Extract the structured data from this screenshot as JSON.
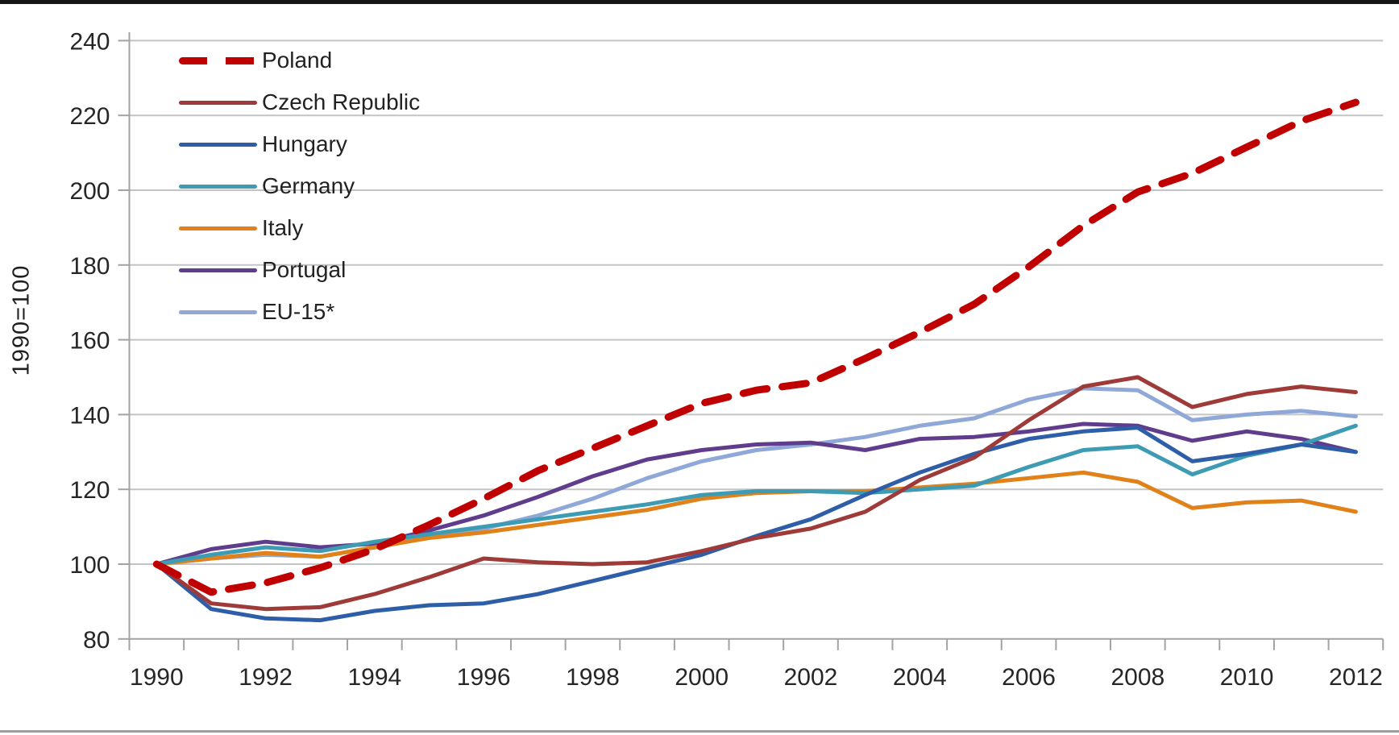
{
  "page": {
    "background_color": "#ffffff",
    "top_edge_color": "#161616",
    "bottom_edge_color": "#9d9d9d"
  },
  "axes": {
    "y_title": "1990=100",
    "grid_color": "#c4c4c4",
    "axis_color": "#a3a3a3",
    "tick_label_color": "#262626"
  },
  "chart_data": {
    "type": "line",
    "title": "",
    "xlabel": "",
    "ylabel": "1990=100",
    "ylim": [
      80,
      240
    ],
    "ytick_step": 20,
    "grid": "horizontal",
    "legend_position": "top-left",
    "x": [
      1990,
      1991,
      1992,
      1993,
      1994,
      1995,
      1996,
      1997,
      1998,
      1999,
      2000,
      2001,
      2002,
      2003,
      2004,
      2005,
      2006,
      2007,
      2008,
      2009,
      2010,
      2011,
      2012
    ],
    "x_tick_labels": [
      "1990",
      "1992",
      "1994",
      "1996",
      "1998",
      "2000",
      "2002",
      "2004",
      "2006",
      "2008",
      "2010",
      "2012"
    ],
    "series": [
      {
        "name": "Poland",
        "color": "#c00000",
        "style": "dashed",
        "width": 9,
        "values": [
          100,
          92.5,
          95,
          99,
          104,
          110.5,
          117.5,
          125,
          131,
          137,
          143,
          146.5,
          148.5,
          155,
          162,
          169.5,
          179.5,
          190.5,
          199.5,
          204.5,
          211.5,
          218.5,
          223.5
        ]
      },
      {
        "name": "Czech Republic",
        "color": "#9e3a38",
        "style": "solid",
        "width": 5,
        "values": [
          100,
          89.5,
          88,
          88.5,
          92,
          96.5,
          101.5,
          100.5,
          100,
          100.5,
          103.5,
          107,
          109.5,
          114,
          122.5,
          128.5,
          138.5,
          147.5,
          150,
          142,
          145.5,
          147.5,
          146
        ]
      },
      {
        "name": "Hungary",
        "color": "#2f5ea8",
        "style": "solid",
        "width": 5,
        "values": [
          100,
          88,
          85.5,
          85,
          87.5,
          89,
          89.5,
          92,
          95.5,
          99,
          102.5,
          107.5,
          112,
          118.5,
          124.5,
          129.5,
          133.5,
          135.5,
          136.5,
          127.5,
          129.5,
          132,
          130
        ]
      },
      {
        "name": "Germany",
        "color": "#3d9cb4",
        "style": "solid",
        "width": 5,
        "values": [
          100,
          102.5,
          104.5,
          103.5,
          106,
          108,
          110,
          112,
          114,
          116,
          118.5,
          119.5,
          119.5,
          119,
          120,
          121,
          126,
          130.5,
          131.5,
          124,
          129,
          132,
          137
        ]
      },
      {
        "name": "Italy",
        "color": "#e08119",
        "style": "solid",
        "width": 5,
        "values": [
          100,
          101.5,
          103,
          102,
          104.5,
          107,
          108.5,
          110.5,
          112.5,
          114.5,
          117.5,
          119,
          119.5,
          119.5,
          120.5,
          121.5,
          123,
          124.5,
          122,
          115,
          116.5,
          117,
          114
        ]
      },
      {
        "name": "Portugal",
        "color": "#5f3d8c",
        "style": "solid",
        "width": 5,
        "values": [
          100,
          104,
          106,
          104.5,
          105.5,
          109,
          113,
          118,
          123.5,
          128,
          130.5,
          132,
          132.5,
          130.5,
          133.5,
          134,
          135.5,
          137.5,
          137,
          133,
          135.5,
          133.5,
          130
        ]
      },
      {
        "name": "EU-15*",
        "color": "#8fa8d8",
        "style": "solid",
        "width": 5,
        "values": [
          100,
          101.5,
          102.5,
          102,
          104.5,
          107.5,
          109.5,
          113,
          117.5,
          123,
          127.5,
          130.5,
          132,
          134,
          137,
          139,
          144,
          147,
          146.5,
          138.5,
          140,
          141,
          139.5
        ]
      }
    ]
  }
}
